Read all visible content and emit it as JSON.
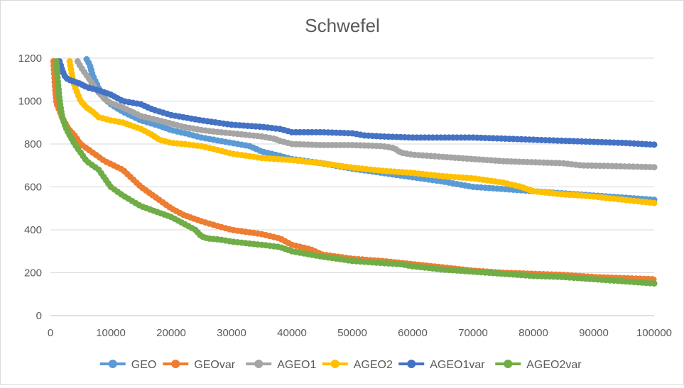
{
  "chart_data": {
    "type": "line",
    "title": "Schwefel",
    "xlabel": "",
    "ylabel": "",
    "xlim": [
      0,
      100000
    ],
    "ylim": [
      0,
      1200
    ],
    "x_ticks": [
      "0",
      "10000",
      "20000",
      "30000",
      "40000",
      "50000",
      "60000",
      "70000",
      "80000",
      "90000",
      "100000"
    ],
    "y_ticks": [
      "0",
      "200",
      "400",
      "600",
      "800",
      "1000",
      "1200"
    ],
    "grid": "horizontal",
    "legend": "bottom",
    "series": [
      {
        "name": "GEO",
        "color": "#5b9bd5",
        "points": [
          [
            6000,
            1195
          ],
          [
            6500,
            1170
          ],
          [
            7000,
            1120
          ],
          [
            8000,
            1060
          ],
          [
            9000,
            1010
          ],
          [
            10000,
            985
          ],
          [
            12000,
            950
          ],
          [
            15000,
            910
          ],
          [
            18000,
            885
          ],
          [
            20000,
            865
          ],
          [
            23000,
            845
          ],
          [
            25000,
            830
          ],
          [
            28000,
            815
          ],
          [
            30000,
            805
          ],
          [
            33000,
            790
          ],
          [
            35000,
            765
          ],
          [
            38000,
            745
          ],
          [
            40000,
            730
          ],
          [
            45000,
            710
          ],
          [
            50000,
            685
          ],
          [
            55000,
            665
          ],
          [
            60000,
            645
          ],
          [
            65000,
            625
          ],
          [
            68000,
            610
          ],
          [
            70000,
            600
          ],
          [
            75000,
            590
          ],
          [
            80000,
            580
          ],
          [
            85000,
            570
          ],
          [
            90000,
            560
          ],
          [
            95000,
            550
          ],
          [
            100000,
            540
          ]
        ]
      },
      {
        "name": "GEOvar",
        "color": "#ed7d31",
        "points": [
          [
            500,
            1185
          ],
          [
            800,
            1050
          ],
          [
            1000,
            990
          ],
          [
            2000,
            920
          ],
          [
            3000,
            870
          ],
          [
            4000,
            840
          ],
          [
            5000,
            800
          ],
          [
            7000,
            760
          ],
          [
            9000,
            720
          ],
          [
            12000,
            680
          ],
          [
            15000,
            600
          ],
          [
            18000,
            540
          ],
          [
            20000,
            500
          ],
          [
            22000,
            470
          ],
          [
            25000,
            440
          ],
          [
            28000,
            415
          ],
          [
            30000,
            400
          ],
          [
            35000,
            380
          ],
          [
            38000,
            360
          ],
          [
            40000,
            330
          ],
          [
            43000,
            310
          ],
          [
            45000,
            285
          ],
          [
            50000,
            265
          ],
          [
            55000,
            255
          ],
          [
            60000,
            240
          ],
          [
            65000,
            225
          ],
          [
            70000,
            210
          ],
          [
            75000,
            200
          ],
          [
            80000,
            195
          ],
          [
            85000,
            190
          ],
          [
            90000,
            180
          ],
          [
            95000,
            175
          ],
          [
            100000,
            170
          ]
        ]
      },
      {
        "name": "AGEO1",
        "color": "#a5a5a5",
        "points": [
          [
            4500,
            1185
          ],
          [
            5000,
            1160
          ],
          [
            6000,
            1120
          ],
          [
            7000,
            1080
          ],
          [
            8000,
            1040
          ],
          [
            9000,
            1010
          ],
          [
            10000,
            990
          ],
          [
            12000,
            970
          ],
          [
            15000,
            930
          ],
          [
            18000,
            910
          ],
          [
            20000,
            895
          ],
          [
            22000,
            880
          ],
          [
            25000,
            865
          ],
          [
            28000,
            855
          ],
          [
            30000,
            850
          ],
          [
            35000,
            835
          ],
          [
            37000,
            825
          ],
          [
            38000,
            815
          ],
          [
            40000,
            800
          ],
          [
            45000,
            795
          ],
          [
            50000,
            795
          ],
          [
            55000,
            790
          ],
          [
            57000,
            780
          ],
          [
            58000,
            760
          ],
          [
            60000,
            750
          ],
          [
            65000,
            740
          ],
          [
            70000,
            730
          ],
          [
            75000,
            720
          ],
          [
            80000,
            715
          ],
          [
            85000,
            710
          ],
          [
            88000,
            700
          ],
          [
            92000,
            698
          ],
          [
            100000,
            692
          ]
        ]
      },
      {
        "name": "AGEO2",
        "color": "#ffc000",
        "points": [
          [
            3200,
            1185
          ],
          [
            3500,
            1130
          ],
          [
            4000,
            1070
          ],
          [
            5000,
            1000
          ],
          [
            6000,
            970
          ],
          [
            7000,
            950
          ],
          [
            8000,
            925
          ],
          [
            10000,
            910
          ],
          [
            12000,
            900
          ],
          [
            15000,
            870
          ],
          [
            17000,
            840
          ],
          [
            18000,
            820
          ],
          [
            20000,
            805
          ],
          [
            22000,
            800
          ],
          [
            25000,
            790
          ],
          [
            28000,
            770
          ],
          [
            30000,
            755
          ],
          [
            35000,
            735
          ],
          [
            40000,
            725
          ],
          [
            45000,
            710
          ],
          [
            50000,
            690
          ],
          [
            55000,
            675
          ],
          [
            60000,
            665
          ],
          [
            65000,
            650
          ],
          [
            70000,
            640
          ],
          [
            75000,
            620
          ],
          [
            78000,
            600
          ],
          [
            80000,
            580
          ],
          [
            85000,
            565
          ],
          [
            88000,
            560
          ],
          [
            90000,
            555
          ],
          [
            95000,
            540
          ],
          [
            100000,
            525
          ]
        ]
      },
      {
        "name": "AGEO1var",
        "color": "#4472c4",
        "points": [
          [
            1500,
            1185
          ],
          [
            2000,
            1140
          ],
          [
            2500,
            1110
          ],
          [
            3000,
            1100
          ],
          [
            4000,
            1090
          ],
          [
            5000,
            1080
          ],
          [
            6000,
            1065
          ],
          [
            8000,
            1050
          ],
          [
            10000,
            1030
          ],
          [
            12000,
            1000
          ],
          [
            15000,
            985
          ],
          [
            17000,
            960
          ],
          [
            20000,
            935
          ],
          [
            25000,
            910
          ],
          [
            30000,
            890
          ],
          [
            35000,
            880
          ],
          [
            38000,
            870
          ],
          [
            40000,
            855
          ],
          [
            45000,
            855
          ],
          [
            50000,
            850
          ],
          [
            52000,
            840
          ],
          [
            55000,
            835
          ],
          [
            60000,
            830
          ],
          [
            65000,
            830
          ],
          [
            70000,
            830
          ],
          [
            75000,
            825
          ],
          [
            80000,
            820
          ],
          [
            85000,
            815
          ],
          [
            90000,
            810
          ],
          [
            95000,
            805
          ],
          [
            100000,
            797
          ]
        ]
      },
      {
        "name": "AGEO2var",
        "color": "#70ad47",
        "points": [
          [
            1000,
            1185
          ],
          [
            1200,
            1100
          ],
          [
            1500,
            1010
          ],
          [
            1800,
            950
          ],
          [
            2000,
            920
          ],
          [
            2500,
            880
          ],
          [
            3000,
            850
          ],
          [
            4000,
            800
          ],
          [
            5000,
            760
          ],
          [
            6000,
            720
          ],
          [
            8000,
            680
          ],
          [
            9000,
            640
          ],
          [
            10000,
            600
          ],
          [
            12000,
            560
          ],
          [
            15000,
            510
          ],
          [
            18000,
            480
          ],
          [
            20000,
            460
          ],
          [
            22000,
            430
          ],
          [
            24000,
            400
          ],
          [
            25000,
            370
          ],
          [
            26000,
            360
          ],
          [
            28000,
            355
          ],
          [
            30000,
            345
          ],
          [
            35000,
            330
          ],
          [
            38000,
            320
          ],
          [
            40000,
            300
          ],
          [
            45000,
            275
          ],
          [
            50000,
            255
          ],
          [
            55000,
            245
          ],
          [
            58000,
            240
          ],
          [
            60000,
            230
          ],
          [
            65000,
            215
          ],
          [
            70000,
            205
          ],
          [
            75000,
            195
          ],
          [
            80000,
            185
          ],
          [
            85000,
            180
          ],
          [
            90000,
            170
          ],
          [
            95000,
            160
          ],
          [
            100000,
            150
          ]
        ]
      }
    ]
  }
}
